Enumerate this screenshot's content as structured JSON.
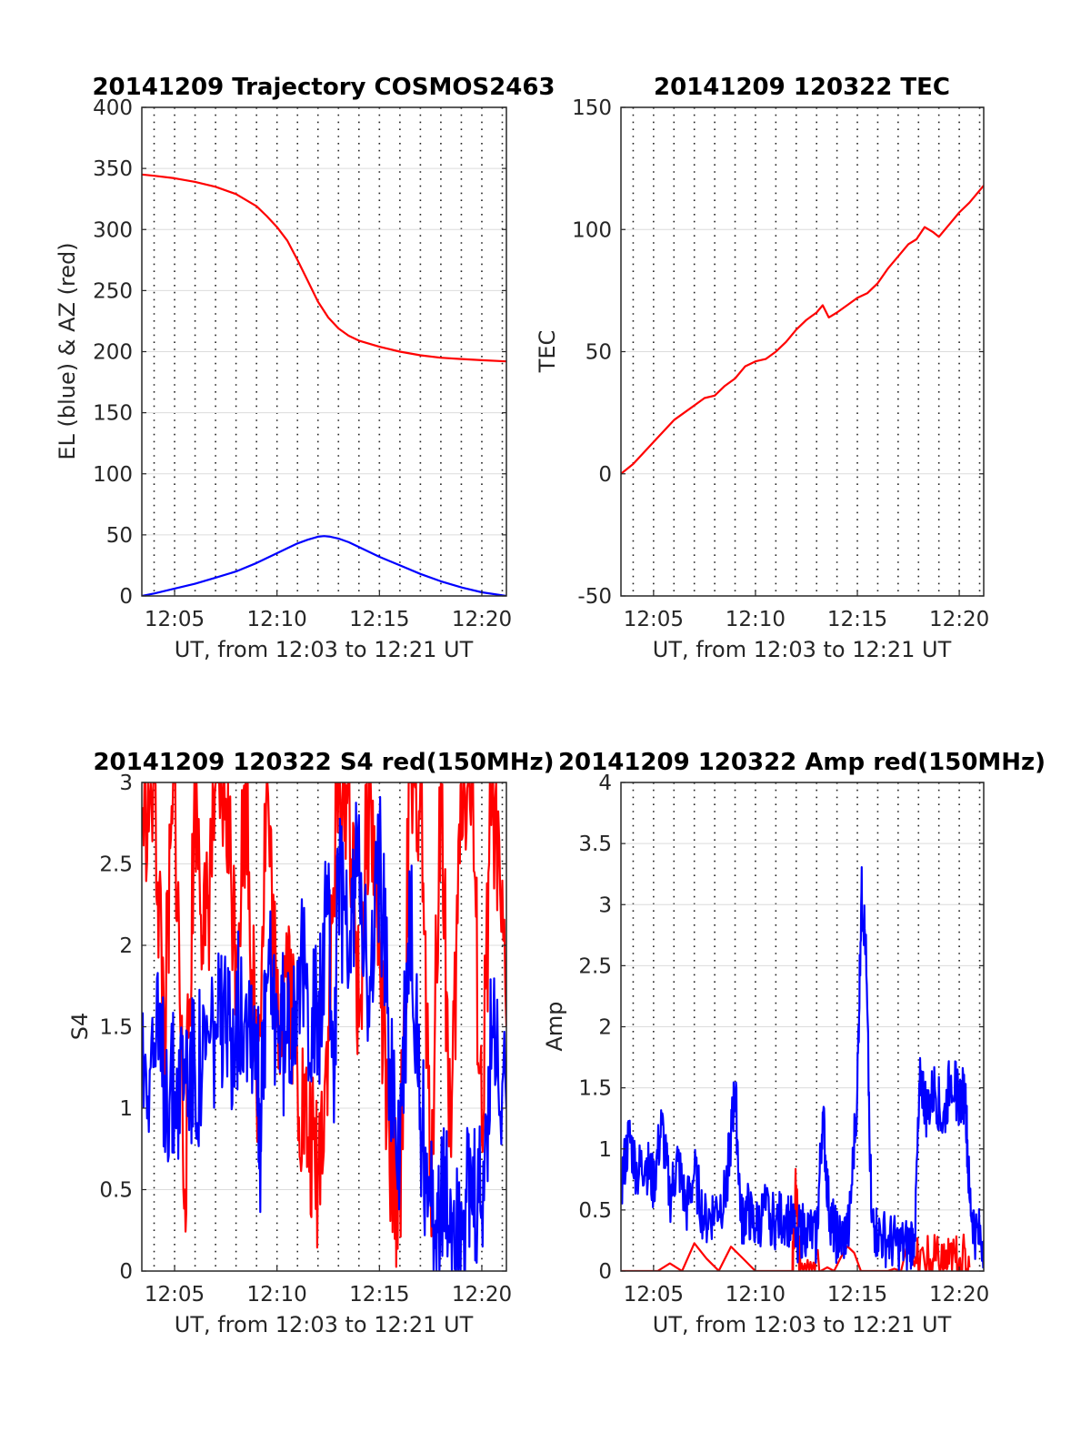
{
  "chart_data": [
    {
      "type": "line",
      "title": "20141209 Trajectory COSMOS2463",
      "xlabel": "UT, from 12:03 to 12:21 UT",
      "ylabel": "EL (blue) & AZ (red)",
      "xlim_minutes": [
        3.4,
        21.2
      ],
      "x_ticks": [
        "12:05",
        "12:10",
        "12:15",
        "12:20"
      ],
      "ylim": [
        0,
        400
      ],
      "y_ticks": [
        "0",
        "50",
        "100",
        "150",
        "200",
        "250",
        "300",
        "350",
        "400"
      ],
      "grid": true,
      "series": [
        {
          "color": "#ff0000",
          "x": [
            3.4,
            4,
            5,
            6,
            7,
            8,
            9,
            9.5,
            10,
            10.5,
            11,
            11.5,
            12,
            12.5,
            13,
            13.5,
            14,
            15,
            16,
            17,
            18,
            19,
            20,
            21.2
          ],
          "values": [
            345,
            344,
            342,
            339,
            335,
            329,
            319,
            311,
            302,
            291,
            275,
            258,
            241,
            228,
            219,
            213,
            209,
            204,
            200,
            197,
            195,
            194,
            193,
            192
          ]
        },
        {
          "color": "#0000ff",
          "x": [
            3.4,
            4,
            5,
            6,
            7,
            8,
            9,
            10,
            10.5,
            11,
            11.5,
            12,
            12.3,
            12.6,
            13,
            13.5,
            14,
            15,
            16,
            17,
            18,
            19,
            20,
            21.2
          ],
          "values": [
            0,
            2,
            6,
            10,
            15,
            20,
            27,
            35,
            39,
            43,
            46,
            48.5,
            49,
            48.5,
            47,
            44,
            40,
            32,
            25,
            18,
            12,
            7,
            3,
            0
          ]
        }
      ]
    },
    {
      "type": "line",
      "title": "20141209 120322 TEC",
      "xlabel": "UT, from 12:03 to 12:21 UT",
      "ylabel": "TEC",
      "xlim_minutes": [
        3.4,
        21.2
      ],
      "x_ticks": [
        "12:05",
        "12:10",
        "12:15",
        "12:20"
      ],
      "ylim": [
        -50,
        150
      ],
      "y_ticks": [
        "-50",
        "0",
        "50",
        "100",
        "150"
      ],
      "grid": true,
      "series": [
        {
          "color": "#ff0000",
          "x": [
            3.4,
            4,
            5,
            6,
            7,
            7.5,
            8,
            8.5,
            9,
            9.5,
            10,
            10.5,
            11,
            11.5,
            12,
            12.5,
            13,
            13.3,
            13.6,
            14,
            14.5,
            15,
            15.5,
            16,
            16.5,
            17,
            17.5,
            17.9,
            18.3,
            18.7,
            19,
            19.5,
            20,
            20.5,
            21.2
          ],
          "values": [
            0,
            4,
            13,
            22,
            28,
            31,
            32,
            36,
            39,
            44,
            46,
            47,
            50,
            54,
            59,
            63,
            66,
            69,
            64,
            66,
            69,
            72,
            74,
            78,
            84,
            89,
            94,
            96,
            101,
            99,
            97,
            102,
            107,
            111,
            118
          ]
        }
      ]
    },
    {
      "type": "line",
      "title": "20141209 120322 S4 red(150MHz)",
      "xlabel": "UT, from 12:03 to 12:21 UT",
      "ylabel": "S4",
      "xlim_minutes": [
        3.4,
        21.2
      ],
      "x_ticks": [
        "12:05",
        "12:10",
        "12:15",
        "12:20"
      ],
      "ylim": [
        0,
        3
      ],
      "y_ticks": [
        "0",
        "0.5",
        "1",
        "1.5",
        "2",
        "2.5",
        "3"
      ],
      "grid": true,
      "series": [
        {
          "color": "#ff0000",
          "note_values": "noisy series clipped at 0 and 3",
          "x": [
            3.4,
            4,
            4.5,
            5,
            5.5,
            6,
            6.5,
            7,
            7.5,
            8,
            8.5,
            9,
            9.5,
            10,
            10.5,
            11,
            11.5,
            12,
            12.5,
            13,
            13.5,
            14,
            14.5,
            15,
            15.5,
            16,
            16.5,
            17,
            17.5,
            18,
            18.5,
            19,
            19.5,
            20,
            20.5,
            21.2
          ],
          "values": [
            2.8,
            3,
            1.5,
            3,
            0.5,
            3,
            2,
            3,
            2.9,
            2,
            3,
            1.1,
            3,
            1.5,
            2,
            1.2,
            0.8,
            0.6,
            1.5,
            3,
            3,
            1.5,
            3,
            2,
            0.6,
            0.5,
            3,
            3,
            0.5,
            3,
            0.7,
            3,
            3,
            0.8,
            3,
            1.5
          ]
        },
        {
          "color": "#0000ff",
          "x": [
            3.4,
            4,
            4.5,
            5,
            5.5,
            6,
            6.5,
            7,
            7.5,
            8,
            8.5,
            9,
            9.2,
            9.5,
            10,
            10.5,
            11,
            11.5,
            12,
            12.5,
            12.8,
            13,
            13.5,
            14,
            14.5,
            15,
            15.5,
            16,
            16.5,
            17,
            17.5,
            18,
            18.5,
            19,
            19.5,
            20,
            20.5,
            21.2
          ],
          "values": [
            1.3,
            1.4,
            1.2,
            1.1,
            1.3,
            1.2,
            1.3,
            1.5,
            1.4,
            1.6,
            1.7,
            1.5,
            0.8,
            1.8,
            1.6,
            1.4,
            1.9,
            1.7,
            1.5,
            2.2,
            1.2,
            2.5,
            1.8,
            2.8,
            1.5,
            2.6,
            1.3,
            0.7,
            2.2,
            1.0,
            0.4,
            0.4,
            0.38,
            0.42,
            0.4,
            0.4,
            1.5,
            1.0
          ]
        }
      ]
    },
    {
      "type": "line",
      "title": "20141209 120322 Amp red(150MHz)",
      "xlabel": "UT, from 12:03 to 12:21 UT",
      "ylabel": "Amp",
      "xlim_minutes": [
        3.4,
        21.2
      ],
      "x_ticks": [
        "12:05",
        "12:10",
        "12:15",
        "12:20"
      ],
      "ylim": [
        0,
        4
      ],
      "y_ticks": [
        "0",
        "0.5",
        "1",
        "1.5",
        "2",
        "2.5",
        "3",
        "3.5",
        "4"
      ],
      "grid": true,
      "series": [
        {
          "color": "#ff0000",
          "x": [
            3.4,
            11.8,
            12.0,
            12.2,
            13.2,
            17.8,
            18.5,
            19,
            19.5,
            20,
            20.5
          ],
          "values": [
            0,
            0,
            0.7,
            0,
            0,
            0.04,
            0.08,
            0.05,
            0.06,
            0.09,
            0.03
          ]
        },
        {
          "color": "#0000ff",
          "x": [
            3.4,
            3.8,
            4.2,
            4.6,
            5.0,
            5.4,
            5.8,
            6.2,
            6.6,
            7.0,
            7.5,
            8.0,
            8.5,
            8.8,
            9.0,
            9.3,
            9.6,
            10.0,
            10.5,
            11.0,
            11.5,
            12.0,
            12.5,
            13.0,
            13.3,
            13.6,
            13.9,
            14.2,
            14.6,
            15.0,
            15.2,
            15.4,
            15.7,
            16.0,
            16.5,
            17.0,
            17.5,
            17.8,
            18.1,
            18.4,
            18.8,
            19.2,
            19.6,
            20.0,
            20.3,
            20.5,
            20.8,
            21.2
          ],
          "values": [
            0.7,
            1.1,
            0.8,
            0.9,
            0.7,
            1.2,
            0.6,
            0.9,
            0.5,
            0.8,
            0.4,
            0.5,
            0.6,
            1.1,
            1.5,
            0.4,
            0.5,
            0.35,
            0.5,
            0.4,
            0.45,
            0.3,
            0.35,
            0.25,
            1.3,
            0.5,
            0.3,
            0.25,
            0.35,
            1.5,
            3.1,
            2.7,
            0.4,
            0.3,
            0.25,
            0.2,
            0.2,
            0.3,
            1.6,
            1.3,
            1.5,
            1.2,
            1.6,
            1.4,
            1.45,
            0.6,
            0.3,
            0.25
          ]
        }
      ]
    }
  ]
}
